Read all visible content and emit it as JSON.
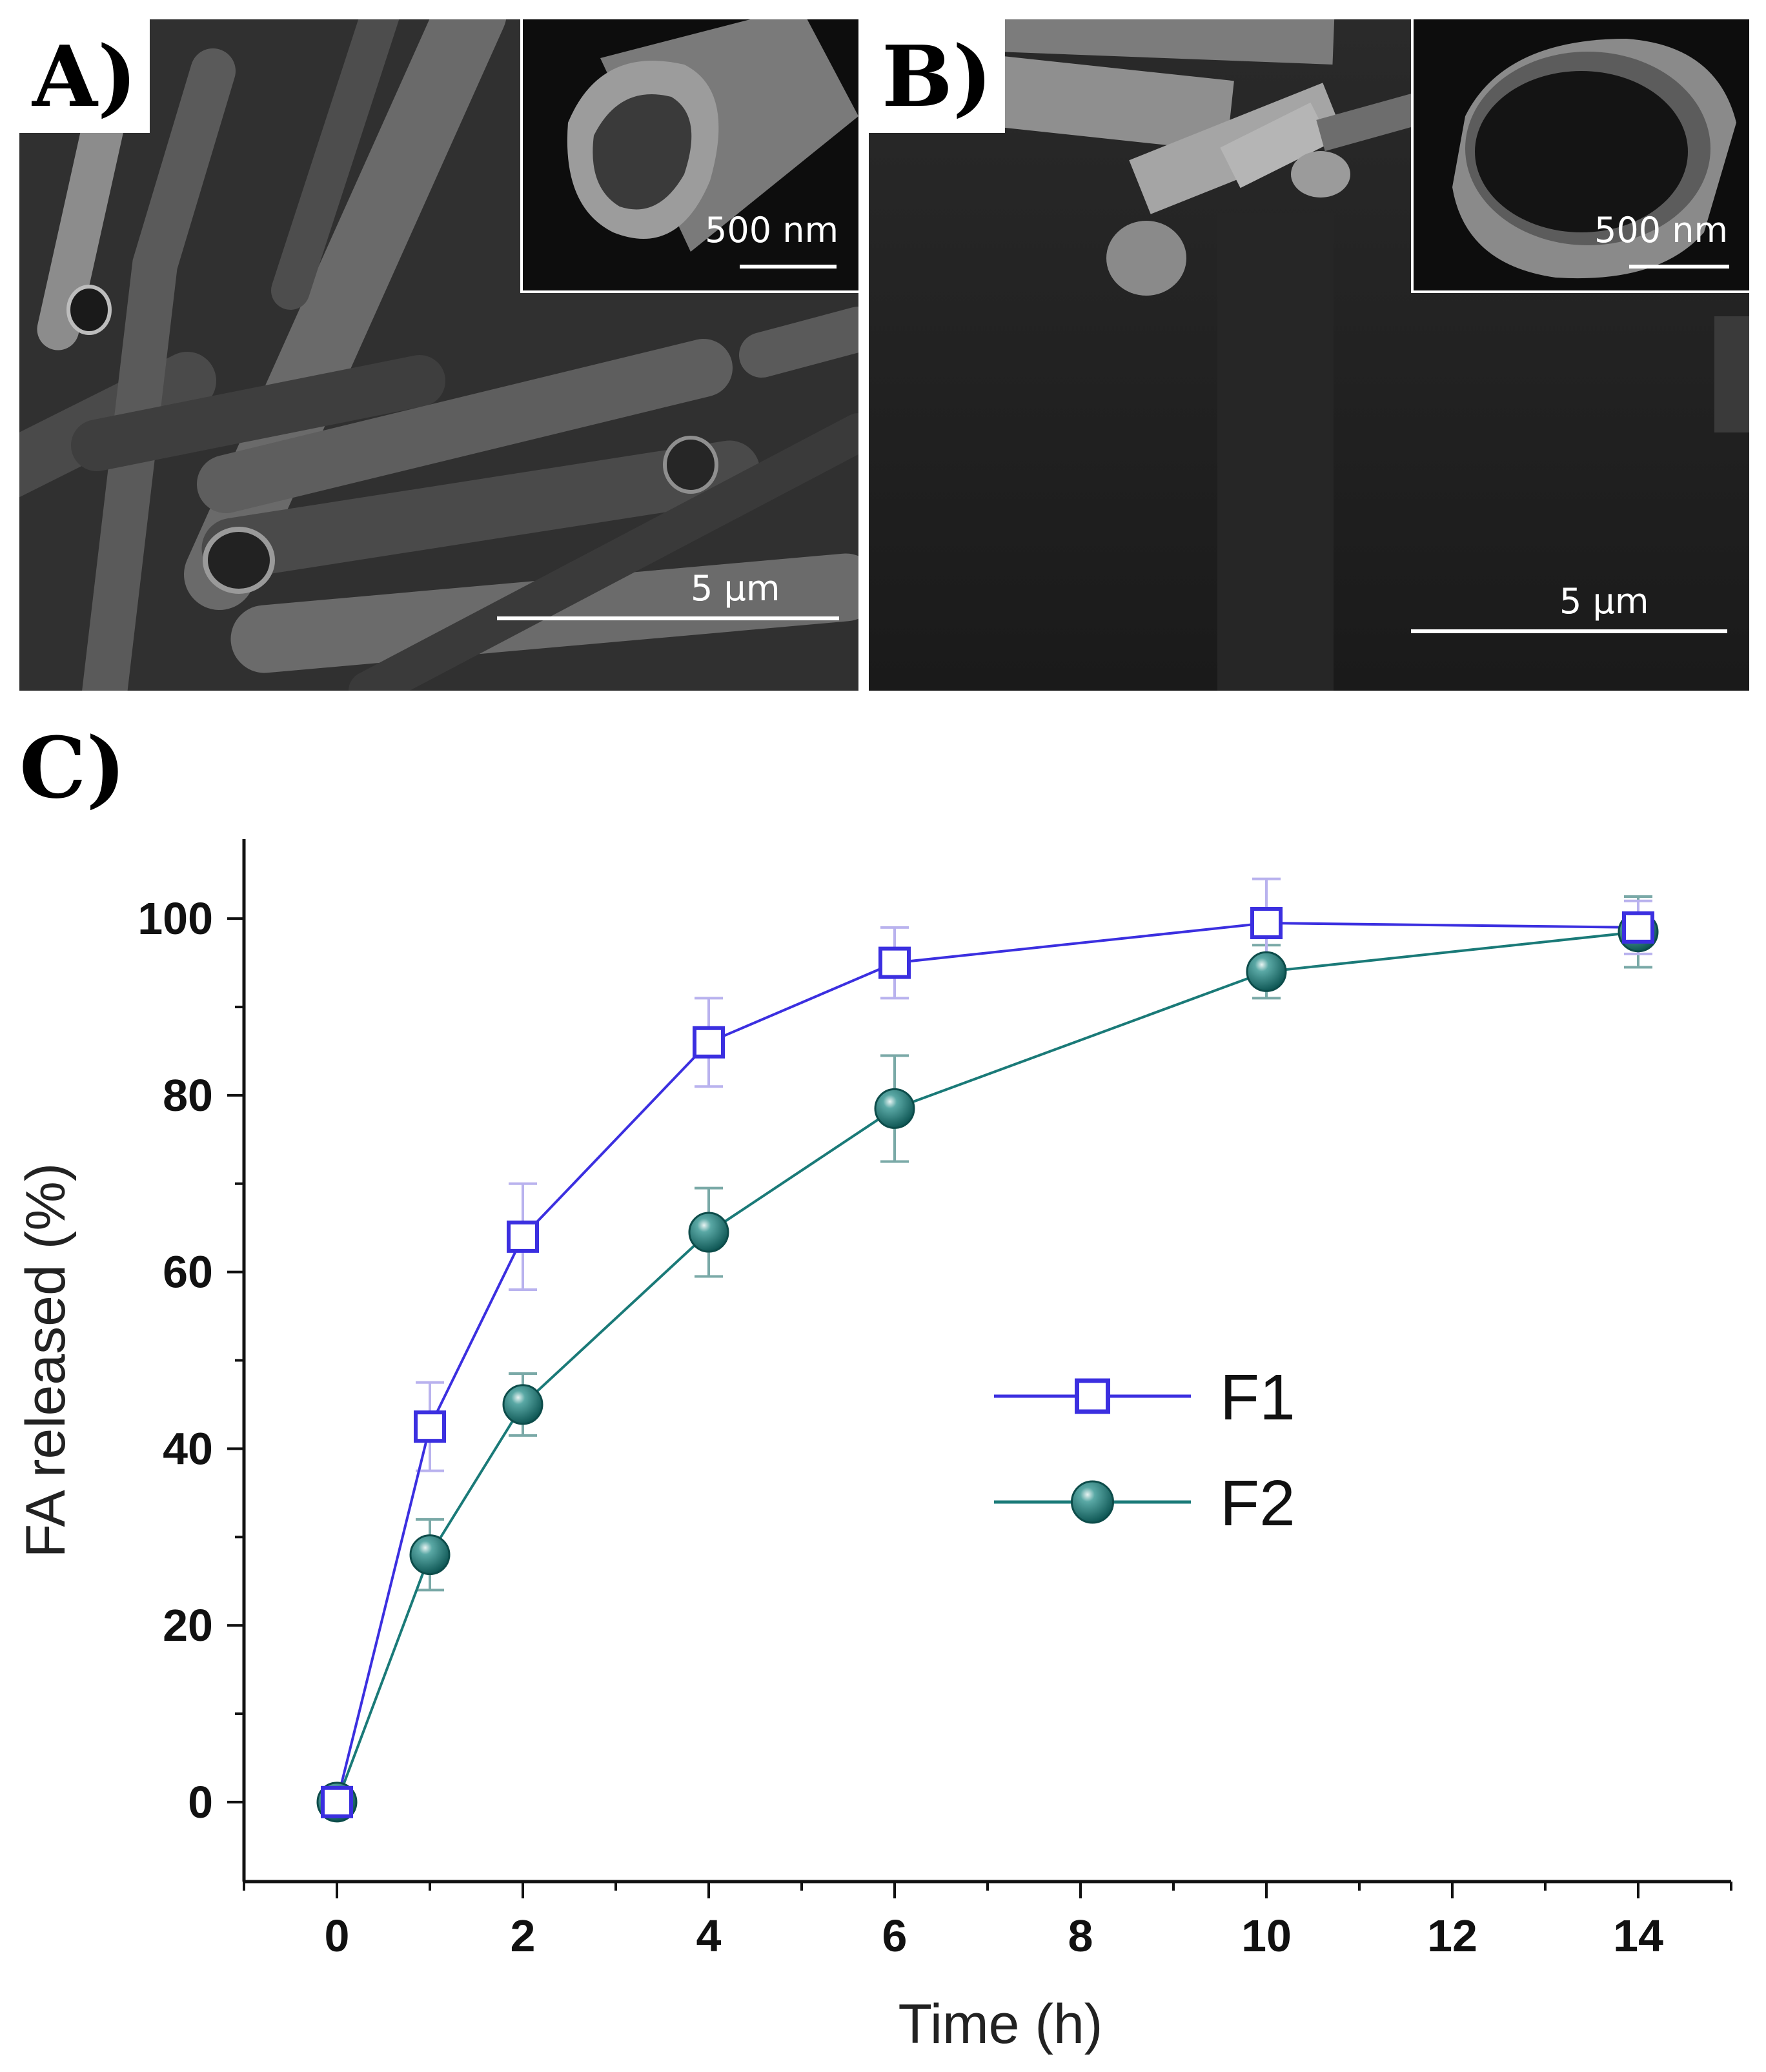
{
  "figure": {
    "panel_a": {
      "letter": "A)",
      "inset_scale": "500 nm",
      "main_scale": "5 μm"
    },
    "panel_b": {
      "letter": "B)",
      "inset_scale": "500 nm",
      "main_scale": "5 μm"
    },
    "panel_c": {
      "letter": "C)"
    }
  },
  "chart_data": {
    "type": "line",
    "xlabel": "Time (h)",
    "ylabel": "FA released (%)",
    "xlim": [
      -1,
      15
    ],
    "ylim": [
      -9,
      109
    ],
    "xticks": [
      0,
      2,
      4,
      6,
      8,
      10,
      12,
      14
    ],
    "yticks": [
      0,
      20,
      40,
      60,
      80,
      100
    ],
    "legend_position": "center-right",
    "grid": false,
    "series": [
      {
        "name": "F1",
        "marker": "open-square",
        "color": "#3b2fe0",
        "x": [
          0,
          1,
          2,
          4,
          6,
          10,
          14
        ],
        "y": [
          0,
          42.5,
          64,
          86,
          95,
          99.5,
          99
        ],
        "err": [
          0,
          5,
          6,
          5,
          4,
          5,
          3
        ]
      },
      {
        "name": "F2",
        "marker": "filled-circle",
        "color": "#1a7a78",
        "x": [
          0,
          1,
          2,
          4,
          6,
          10,
          14
        ],
        "y": [
          0,
          28,
          45,
          64.5,
          78.5,
          94,
          98.5
        ],
        "err": [
          0,
          4,
          3.5,
          5,
          6,
          3,
          4
        ]
      }
    ]
  }
}
